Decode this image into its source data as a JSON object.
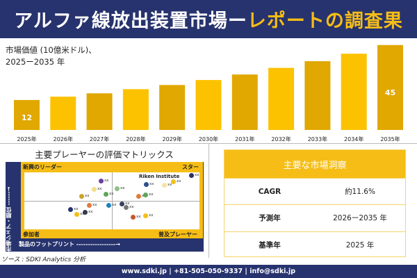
{
  "header": {
    "title_main": "アルファ線放出装置市場ー",
    "title_accent": "レポートの調査果"
  },
  "chart_data": {
    "type": "bar",
    "title": "市場価値 (10億米ドル)、",
    "subtitle": "2025ー2035 年",
    "categories": [
      "2025年",
      "2026年",
      "2027年",
      "2028年",
      "2029年",
      "2030年",
      "2031年",
      "2032年",
      "2033年",
      "2034年",
      "2035年"
    ],
    "values": [
      12,
      14,
      16,
      18.5,
      21,
      24,
      27.3,
      31.3,
      35.3,
      39.8,
      45
    ],
    "data_labels": {
      "first": "12",
      "last": "45"
    },
    "ylim": [
      -6,
      47
    ],
    "colors": {
      "bar": "#e0a800",
      "bar_light": "#fcc200"
    }
  },
  "matrix": {
    "title": "主要プレーヤーの評価マトリックス",
    "q_tl": "新興のリーダー",
    "q_tr": "スター",
    "q_bl": "参加者",
    "q_br": "普及プレーヤー",
    "highlight": "Riken Institute",
    "point_label": "xx",
    "y_axis": "市場シェア・順位 ------→",
    "x_axis": "製品のフットプリント -----------------→"
  },
  "source": "ソース : SDKI Analytics 分析",
  "insights": {
    "title": "主要な市場洞察",
    "rows": [
      {
        "k": "CAGR",
        "v": "約11.6%"
      },
      {
        "k": "予測年",
        "v": "2026ー2035 年"
      },
      {
        "k": "基準年",
        "v": "2025 年"
      }
    ]
  },
  "footer": "www.sdki.jp | +81-505-050-9337 | info@sdki.jp"
}
